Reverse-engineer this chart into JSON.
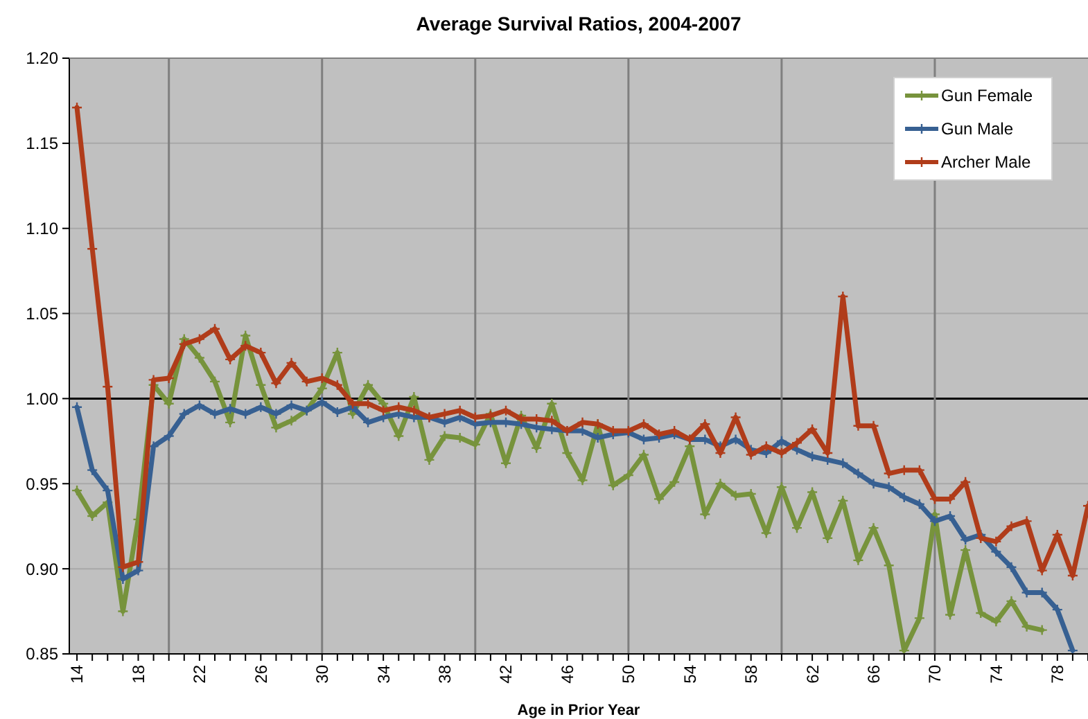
{
  "chart_data": {
    "type": "line",
    "title": "Average Survival Ratios, 2004-2007",
    "xlabel": "Age in Prior Year",
    "x": [
      14,
      15,
      16,
      17,
      18,
      19,
      20,
      21,
      22,
      23,
      24,
      25,
      26,
      27,
      28,
      29,
      30,
      31,
      32,
      33,
      34,
      35,
      36,
      37,
      38,
      39,
      40,
      41,
      42,
      43,
      44,
      45,
      46,
      47,
      48,
      49,
      50,
      51,
      52,
      53,
      54,
      55,
      56,
      57,
      58,
      59,
      60,
      61,
      62,
      63,
      64,
      65,
      66,
      67,
      68,
      69,
      70,
      71,
      72,
      73,
      74,
      75,
      76,
      77,
      78,
      79,
      80
    ],
    "series": [
      {
        "name": "Gun Female",
        "color": "#77933c",
        "values": [
          0.946,
          0.931,
          0.939,
          0.875,
          0.929,
          1.008,
          0.997,
          1.035,
          1.024,
          1.01,
          0.986,
          1.037,
          1.008,
          0.983,
          0.987,
          0.993,
          1.006,
          1.027,
          0.991,
          1.008,
          0.997,
          0.978,
          1.001,
          0.964,
          0.978,
          0.977,
          0.973,
          0.991,
          0.962,
          0.99,
          0.971,
          0.997,
          0.968,
          0.952,
          0.985,
          0.949,
          0.955,
          0.967,
          0.941,
          0.951,
          0.972,
          0.932,
          0.95,
          0.943,
          0.944,
          0.921,
          0.948,
          0.924,
          0.945,
          0.918,
          0.94,
          0.905,
          0.924,
          0.902,
          0.852,
          0.871,
          0.932,
          0.873,
          0.911,
          0.874,
          0.869,
          0.881,
          0.866,
          0.864,
          null,
          null,
          null
        ]
      },
      {
        "name": "Gun Male",
        "color": "#376092",
        "values": [
          0.995,
          0.958,
          0.946,
          0.894,
          0.899,
          0.972,
          0.978,
          0.991,
          0.996,
          0.991,
          0.994,
          0.991,
          0.995,
          0.991,
          0.996,
          0.993,
          0.998,
          0.992,
          0.995,
          0.986,
          0.989,
          0.991,
          0.989,
          0.989,
          0.986,
          0.989,
          0.985,
          0.986,
          0.986,
          0.985,
          0.983,
          0.982,
          0.981,
          0.981,
          0.977,
          0.979,
          0.98,
          0.976,
          0.977,
          0.979,
          0.976,
          0.976,
          0.972,
          0.976,
          0.97,
          0.968,
          0.975,
          0.97,
          0.966,
          0.964,
          0.962,
          0.956,
          0.95,
          0.948,
          0.942,
          0.938,
          0.928,
          0.931,
          0.917,
          0.92,
          0.91,
          0.901,
          0.886,
          0.886,
          0.876,
          0.852,
          null
        ]
      },
      {
        "name": "Archer Male",
        "color": "#b03c1a",
        "values": [
          1.171,
          1.088,
          1.007,
          0.901,
          0.904,
          1.011,
          1.012,
          1.032,
          1.035,
          1.041,
          1.023,
          1.031,
          1.027,
          1.009,
          1.021,
          1.01,
          1.012,
          1.008,
          0.997,
          0.997,
          0.993,
          0.995,
          0.993,
          0.989,
          0.991,
          0.993,
          0.989,
          0.99,
          0.993,
          0.988,
          0.988,
          0.987,
          0.981,
          0.986,
          0.985,
          0.981,
          0.981,
          0.985,
          0.979,
          0.981,
          0.976,
          0.985,
          0.968,
          0.989,
          0.967,
          0.972,
          0.968,
          0.974,
          0.982,
          0.968,
          1.06,
          0.984,
          0.984,
          0.956,
          0.958,
          0.958,
          0.941,
          0.941,
          0.951,
          0.918,
          0.916,
          0.925,
          0.928,
          0.899,
          0.92,
          0.896,
          0.937
        ]
      }
    ],
    "xlim": [
      13.5,
      80
    ],
    "xticks": [
      14,
      {
        "value": 15,
        "label": null
      },
      {
        "value": 16,
        "label": null
      },
      {
        "value": 17,
        "label": null
      },
      18,
      {
        "value": 19,
        "label": null
      },
      {
        "value": 20,
        "label": null
      },
      {
        "value": 21,
        "label": null
      },
      22,
      {
        "value": 23,
        "label": null
      },
      {
        "value": 24,
        "label": null
      },
      {
        "value": 25,
        "label": null
      },
      26,
      {
        "value": 27,
        "label": null
      },
      {
        "value": 28,
        "label": null
      },
      {
        "value": 29,
        "label": null
      },
      30,
      {
        "value": 31,
        "label": null
      },
      {
        "value": 32,
        "label": null
      },
      {
        "value": 33,
        "label": null
      },
      34,
      {
        "value": 35,
        "label": null
      },
      {
        "value": 36,
        "label": null
      },
      {
        "value": 37,
        "label": null
      },
      38,
      {
        "value": 39,
        "label": null
      },
      {
        "value": 40,
        "label": null
      },
      {
        "value": 41,
        "label": null
      },
      42,
      {
        "value": 43,
        "label": null
      },
      {
        "value": 44,
        "label": null
      },
      {
        "value": 45,
        "label": null
      },
      46,
      {
        "value": 47,
        "label": null
      },
      {
        "value": 48,
        "label": null
      },
      {
        "value": 49,
        "label": null
      },
      50,
      {
        "value": 51,
        "label": null
      },
      {
        "value": 52,
        "label": null
      },
      {
        "value": 53,
        "label": null
      },
      54,
      {
        "value": 55,
        "label": null
      },
      {
        "value": 56,
        "label": null
      },
      {
        "value": 57,
        "label": null
      },
      58,
      {
        "value": 59,
        "label": null
      },
      {
        "value": 60,
        "label": null
      },
      {
        "value": 61,
        "label": null
      },
      62,
      {
        "value": 63,
        "label": null
      },
      {
        "value": 64,
        "label": null
      },
      {
        "value": 65,
        "label": null
      },
      66,
      {
        "value": 67,
        "label": null
      },
      {
        "value": 68,
        "label": null
      },
      {
        "value": 69,
        "label": null
      },
      70,
      {
        "value": 71,
        "label": null
      },
      {
        "value": 72,
        "label": null
      },
      {
        "value": 73,
        "label": null
      },
      74,
      {
        "value": 75,
        "label": null
      },
      {
        "value": 76,
        "label": null
      },
      {
        "value": 77,
        "label": null
      },
      78,
      {
        "value": 79,
        "label": null
      },
      {
        "value": 80,
        "label": null
      }
    ],
    "ylim": [
      0.85,
      1.2
    ],
    "yticks": [
      {
        "value": 0.85,
        "label": "0.85"
      },
      {
        "value": 0.9,
        "label": "0.90"
      },
      {
        "value": 0.95,
        "label": "0.95"
      },
      {
        "value": 1.0,
        "label": "1.00"
      },
      {
        "value": 1.05,
        "label": "1.05"
      },
      {
        "value": 1.1,
        "label": "1.10"
      },
      {
        "value": 1.15,
        "label": "1.15"
      },
      {
        "value": 1.2,
        "label": "1.20"
      }
    ],
    "grid": "y",
    "ref_lines": [
      {
        "axis": "y",
        "value": 1.0,
        "color": "#000000"
      },
      {
        "axis": "x",
        "value": 20,
        "color": "#7f7f7f"
      },
      {
        "axis": "x",
        "value": 30,
        "color": "#7f7f7f"
      },
      {
        "axis": "x",
        "value": 40,
        "color": "#7f7f7f"
      },
      {
        "axis": "x",
        "value": 50,
        "color": "#7f7f7f"
      },
      {
        "axis": "x",
        "value": 60,
        "color": "#7f7f7f"
      },
      {
        "axis": "x",
        "value": 70,
        "color": "#7f7f7f"
      }
    ],
    "legend": "top right",
    "marker": "cross",
    "line_style": "solid"
  }
}
